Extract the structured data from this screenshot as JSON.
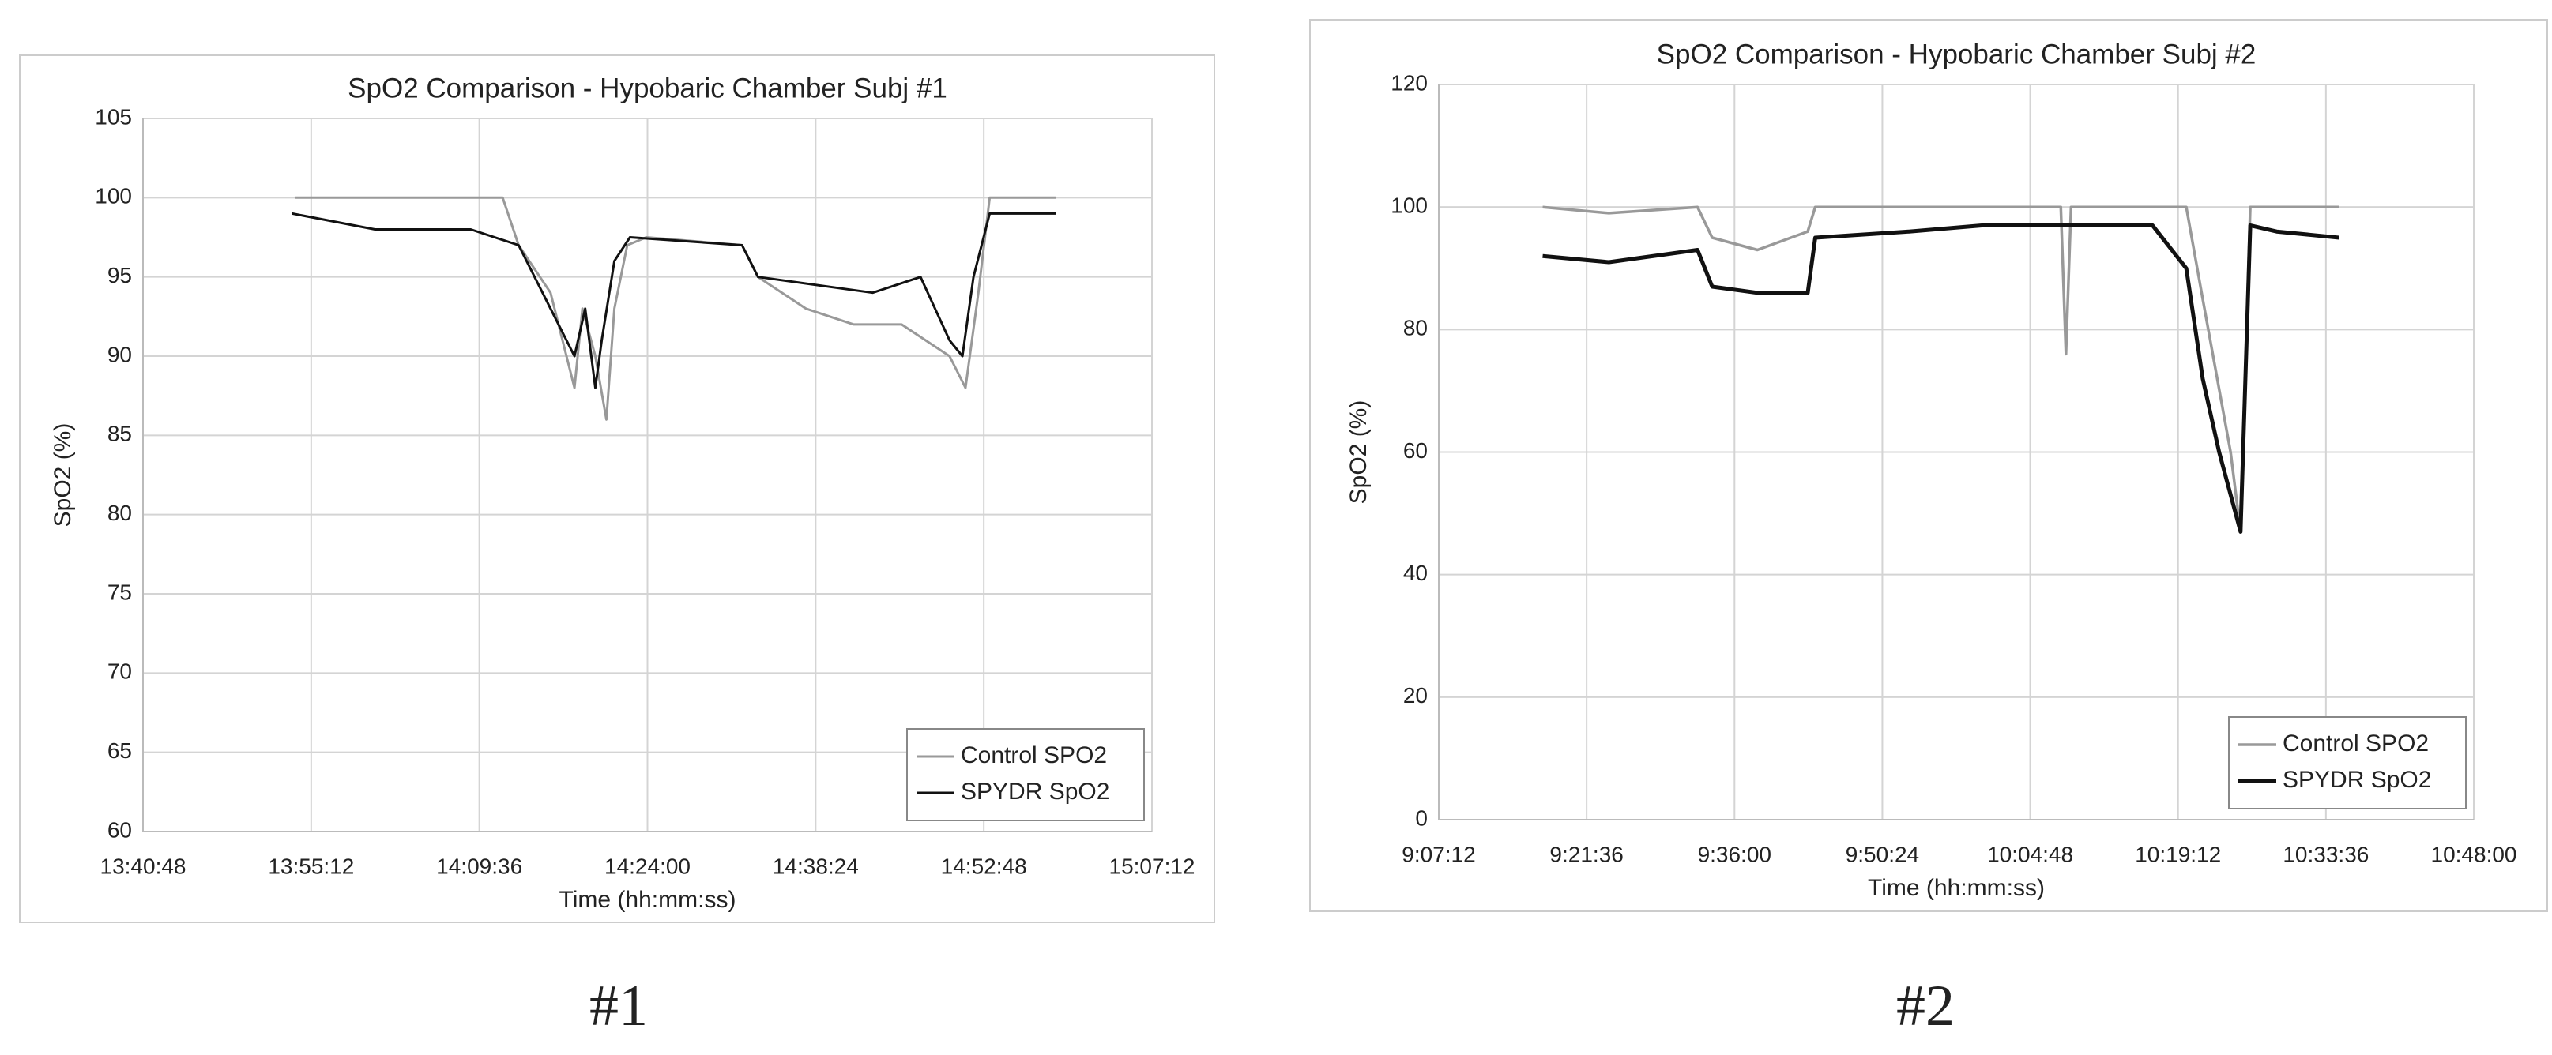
{
  "chart_data": [
    {
      "type": "line",
      "title": "SpO2 Comparison - Hypobaric Chamber Subj #1",
      "caption": "#1",
      "x_label": "Time (hh:mm:ss)",
      "y_label": "SpO2 (%)",
      "xlim": [
        "13:40:48",
        "15:07:12"
      ],
      "xticks": [
        "13:40:48",
        "13:55:12",
        "14:09:36",
        "14:24:00",
        "14:38:24",
        "14:52:48",
        "15:07:12"
      ],
      "ylim": [
        60,
        105
      ],
      "yticks": [
        60,
        65,
        70,
        75,
        80,
        85,
        90,
        95,
        100,
        105
      ],
      "grid": true,
      "legend": "lower right",
      "series": [
        {
          "name": "Control SPO2",
          "color": "#999999",
          "x": [
            "13:53:50",
            "14:11:36",
            "14:12:58",
            "14:15:42",
            "14:17:04",
            "14:17:45",
            "14:18:26",
            "14:19:32",
            "14:20:29",
            "14:21:10",
            "14:22:16",
            "14:23:54",
            "14:32:06",
            "14:33:28",
            "14:37:34",
            "14:41:40",
            "14:45:46",
            "14:49:52",
            "14:51:14",
            "14:52:20",
            "14:53:18",
            "14:59:00"
          ],
          "values": [
            100,
            100,
            97,
            94,
            90,
            88,
            93,
            90,
            86,
            93,
            97,
            97.5,
            97,
            95,
            93,
            92,
            92,
            90,
            88,
            94,
            100,
            100
          ]
        },
        {
          "name": "SPYDR SpO2",
          "color": "#111111",
          "x": [
            "13:53:34",
            "14:00:40",
            "14:08:52",
            "14:12:58",
            "14:15:42",
            "14:17:45",
            "14:18:40",
            "14:19:32",
            "14:20:05",
            "14:21:10",
            "14:22:30",
            "14:32:06",
            "14:33:28",
            "14:43:17",
            "14:47:23",
            "14:49:52",
            "14:50:58",
            "14:51:55",
            "14:53:18",
            "14:59:00"
          ],
          "values": [
            99,
            98,
            98,
            97,
            93,
            90,
            93,
            88,
            91,
            96,
            97.5,
            97,
            95,
            94,
            95,
            91,
            90,
            95,
            99,
            99
          ]
        }
      ]
    },
    {
      "type": "line",
      "title": "SpO2 Comparison - Hypobaric Chamber Subj #2",
      "caption": "#2",
      "x_label": "Time (hh:mm:ss)",
      "y_label": "SpO2 (%)",
      "xlim": [
        "9:07:12",
        "10:48:00"
      ],
      "xticks": [
        "9:07:12",
        "9:21:36",
        "9:36:00",
        "9:50:24",
        "10:04:48",
        "10:19:12",
        "10:33:36",
        "10:48:00"
      ],
      "ylim": [
        0,
        120
      ],
      "yticks": [
        0,
        20,
        40,
        60,
        80,
        100,
        120
      ],
      "grid": true,
      "legend": "lower right",
      "series": [
        {
          "name": "Control SPO2",
          "color": "#999999",
          "x": [
            "9:17:19",
            "9:23:46",
            "9:32:24",
            "9:33:50",
            "9:38:14",
            "9:43:08",
            "9:43:52",
            "10:07:47",
            "10:08:17",
            "10:08:47",
            "10:16:43",
            "10:20:00",
            "10:21:36",
            "10:24:19",
            "10:25:17",
            "10:26:14",
            "10:34:53"
          ],
          "values": [
            100,
            99,
            100,
            95,
            93,
            96,
            100,
            100,
            76,
            100,
            100,
            100,
            85,
            60,
            47,
            100,
            100
          ]
        },
        {
          "name": "SPYDR SpO2",
          "color": "#111111",
          "x": [
            "9:17:19",
            "9:23:46",
            "9:32:24",
            "9:33:50",
            "9:38:14",
            "9:43:08",
            "9:43:52",
            "9:53:00",
            "10:00:12",
            "10:16:43",
            "10:20:00",
            "10:21:36",
            "10:23:12",
            "10:25:17",
            "10:26:14",
            "10:28:48",
            "10:34:53"
          ],
          "values": [
            92,
            91,
            93,
            87,
            86,
            86,
            95,
            96,
            97,
            97,
            90,
            72,
            60,
            47,
            97,
            96,
            95
          ]
        }
      ]
    }
  ]
}
